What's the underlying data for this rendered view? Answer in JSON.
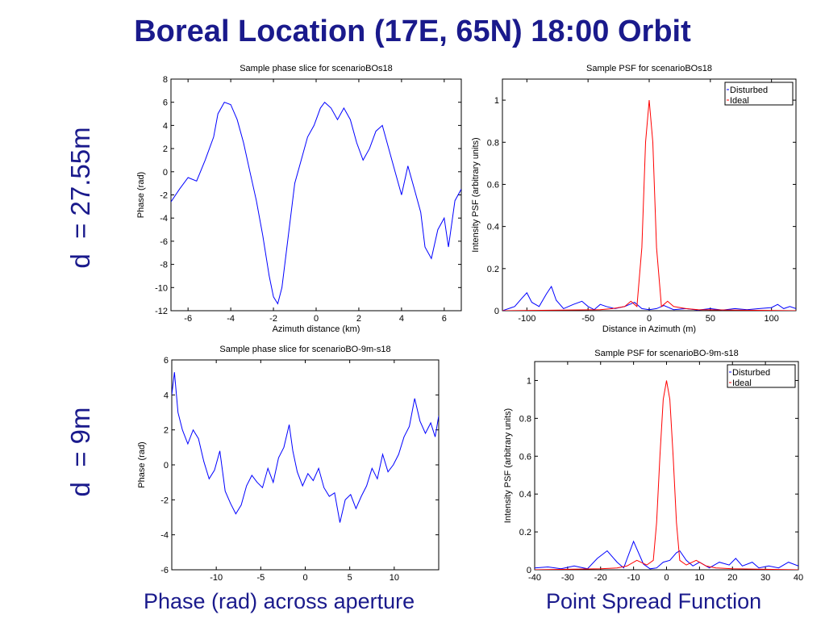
{
  "slide": {
    "title": "Boreal Location (17E, 65N) 18:00 Orbit",
    "row_top_label": "d  = 27.55m",
    "row_bottom_label": "d  = 9m",
    "caption_left": "Phase (rad) across aperture",
    "caption_right": "Point Spread Function",
    "accent_color": "#1a1a8c"
  },
  "chart_data": [
    {
      "id": "phase-top",
      "type": "line",
      "title": "Sample phase slice for scenarioBOs18",
      "xlabel": "Azimuth distance (km)",
      "ylabel": "Phase (rad)",
      "xlim": [
        -6.8,
        6.8
      ],
      "ylim": [
        -12,
        8
      ],
      "xticks": [
        -6,
        -4,
        -2,
        0,
        2,
        4,
        6
      ],
      "yticks": [
        -12,
        -10,
        -8,
        -6,
        -4,
        -2,
        0,
        2,
        4,
        6,
        8
      ],
      "series": [
        {
          "color": "#0000ff",
          "x": [
            -6.8,
            -6.4,
            -6.0,
            -5.6,
            -5.2,
            -4.8,
            -4.6,
            -4.3,
            -4.0,
            -3.7,
            -3.4,
            -3.1,
            -2.8,
            -2.5,
            -2.2,
            -2.0,
            -1.8,
            -1.6,
            -1.4,
            -1.2,
            -1.0,
            -0.7,
            -0.4,
            -0.1,
            0.2,
            0.4,
            0.7,
            1.0,
            1.3,
            1.6,
            1.9,
            2.2,
            2.5,
            2.8,
            3.1,
            3.4,
            3.7,
            4.0,
            4.3,
            4.6,
            4.9,
            5.1,
            5.4,
            5.7,
            6.0,
            6.2,
            6.5,
            6.8
          ],
          "y": [
            -2.6,
            -1.5,
            -0.5,
            -0.8,
            1.0,
            3.0,
            5.0,
            6.0,
            5.8,
            4.5,
            2.5,
            0.0,
            -2.5,
            -5.5,
            -9.0,
            -10.8,
            -11.4,
            -10.0,
            -7.0,
            -4.0,
            -1.0,
            1.0,
            3.0,
            4.0,
            5.5,
            6.0,
            5.5,
            4.5,
            5.5,
            4.5,
            2.5,
            1.0,
            2.0,
            3.5,
            4.0,
            2.0,
            0.0,
            -2.0,
            0.5,
            -1.5,
            -3.5,
            -6.5,
            -7.5,
            -5.0,
            -4.0,
            -6.5,
            -2.5,
            -1.5
          ]
        }
      ]
    },
    {
      "id": "psf-top",
      "type": "line",
      "title": "Sample PSF for scenarioBOs18",
      "xlabel": "Distance in Azimuth (m)",
      "ylabel": "Intensity PSF (arbitrary units)",
      "xlim": [
        -120,
        120
      ],
      "ylim": [
        0,
        1.1
      ],
      "xticks": [
        -100,
        -50,
        0,
        50,
        100
      ],
      "yticks": [
        0,
        0.2,
        0.4,
        0.6,
        0.8,
        1
      ],
      "legend": [
        "Disturbed",
        "Ideal"
      ],
      "legend_placement": "top-right",
      "series": [
        {
          "name": "Disturbed",
          "color": "#0000ff",
          "x": [
            -120,
            -110,
            -104,
            -100,
            -96,
            -90,
            -84,
            -80,
            -76,
            -70,
            -62,
            -55,
            -50,
            -45,
            -40,
            -35,
            -28,
            -20,
            -12,
            -6,
            0,
            6,
            12,
            20,
            30,
            40,
            50,
            60,
            70,
            80,
            90,
            100,
            105,
            110,
            115,
            120
          ],
          "y": [
            0.0,
            0.02,
            0.06,
            0.085,
            0.04,
            0.02,
            0.08,
            0.115,
            0.05,
            0.01,
            0.03,
            0.045,
            0.02,
            0.005,
            0.03,
            0.02,
            0.01,
            0.02,
            0.04,
            0.01,
            0.005,
            0.01,
            0.025,
            0.005,
            0.01,
            0.003,
            0.01,
            0.003,
            0.01,
            0.005,
            0.01,
            0.015,
            0.03,
            0.01,
            0.02,
            0.01
          ]
        },
        {
          "name": "Ideal",
          "color": "#ff0000",
          "x": [
            -120,
            -40,
            -30,
            -20,
            -15,
            -10,
            -6,
            -3,
            0,
            3,
            6,
            10,
            15,
            20,
            30,
            40,
            120
          ],
          "y": [
            0.0,
            0.005,
            0.01,
            0.02,
            0.045,
            0.02,
            0.3,
            0.8,
            1.0,
            0.8,
            0.3,
            0.02,
            0.045,
            0.02,
            0.01,
            0.005,
            0.0
          ]
        }
      ]
    },
    {
      "id": "phase-bottom",
      "type": "line",
      "title": "Sample phase slice for scenarioBO-9m-s18",
      "xlabel": "",
      "ylabel": "Phase (rad)",
      "xlim": [
        -15,
        15
      ],
      "ylim": [
        -6,
        6
      ],
      "xticks": [
        -10,
        -5,
        0,
        5,
        10
      ],
      "yticks": [
        -6,
        -4,
        -2,
        0,
        2,
        4,
        6
      ],
      "series": [
        {
          "color": "#0000ff",
          "x": [
            -15.0,
            -14.7,
            -14.3,
            -13.8,
            -13.2,
            -12.6,
            -12.0,
            -11.4,
            -10.8,
            -10.2,
            -9.6,
            -9.0,
            -8.4,
            -7.8,
            -7.2,
            -6.6,
            -6.0,
            -5.4,
            -4.8,
            -4.2,
            -3.6,
            -3.0,
            -2.4,
            -1.8,
            -1.4,
            -0.9,
            -0.3,
            0.3,
            0.9,
            1.5,
            2.1,
            2.7,
            3.3,
            3.9,
            4.5,
            5.1,
            5.7,
            6.3,
            6.9,
            7.5,
            8.1,
            8.7,
            9.3,
            9.9,
            10.5,
            11.1,
            11.7,
            12.3,
            12.9,
            13.5,
            14.1,
            14.6,
            15.0
          ],
          "y": [
            4.0,
            5.3,
            3.0,
            2.0,
            1.2,
            2.0,
            1.5,
            0.2,
            -0.8,
            -0.3,
            0.8,
            -1.5,
            -2.2,
            -2.8,
            -2.3,
            -1.2,
            -0.6,
            -1.0,
            -1.3,
            -0.2,
            -1.0,
            0.4,
            1.0,
            2.3,
            0.8,
            -0.4,
            -1.2,
            -0.5,
            -0.9,
            -0.2,
            -1.3,
            -1.8,
            -1.6,
            -3.3,
            -2.0,
            -1.7,
            -2.5,
            -1.8,
            -1.2,
            -0.2,
            -0.8,
            0.6,
            -0.4,
            0.0,
            0.6,
            1.6,
            2.2,
            3.8,
            2.5,
            1.8,
            2.4,
            1.6,
            2.8
          ]
        }
      ]
    },
    {
      "id": "psf-bottom",
      "type": "line",
      "title": "Sample PSF for scenarioBO-9m-s18",
      "xlabel": "",
      "ylabel": "Intensity PSF (arbitrary units)",
      "xlim": [
        -40,
        40
      ],
      "ylim": [
        0,
        1.1
      ],
      "xticks": [
        -40,
        -30,
        -20,
        -10,
        0,
        10,
        20,
        30,
        40
      ],
      "yticks": [
        0,
        0.2,
        0.4,
        0.6,
        0.8,
        1
      ],
      "legend": [
        "Disturbed",
        "Ideal"
      ],
      "legend_placement": "top-right",
      "series": [
        {
          "name": "Disturbed",
          "color": "#0000ff",
          "x": [
            -40,
            -36,
            -32,
            -28,
            -24,
            -21,
            -18,
            -15,
            -13,
            -10,
            -7,
            -5,
            -3,
            -1,
            1,
            3,
            4,
            6,
            8,
            10,
            13,
            16,
            19,
            21,
            23,
            26,
            28,
            31,
            34,
            37,
            40
          ],
          "y": [
            0.01,
            0.015,
            0.005,
            0.02,
            0.005,
            0.06,
            0.1,
            0.04,
            0.01,
            0.15,
            0.03,
            0.005,
            0.01,
            0.04,
            0.05,
            0.09,
            0.1,
            0.05,
            0.02,
            0.04,
            0.01,
            0.04,
            0.025,
            0.06,
            0.02,
            0.04,
            0.01,
            0.02,
            0.01,
            0.04,
            0.02
          ]
        },
        {
          "name": "Ideal",
          "color": "#ff0000",
          "x": [
            -40,
            -20,
            -15,
            -12,
            -9,
            -6,
            -4,
            -3,
            -2,
            -1,
            0,
            1,
            2,
            3,
            4,
            6,
            9,
            12,
            15,
            20,
            40
          ],
          "y": [
            0.0,
            0.005,
            0.01,
            0.02,
            0.05,
            0.025,
            0.05,
            0.25,
            0.6,
            0.9,
            1.0,
            0.9,
            0.6,
            0.25,
            0.05,
            0.025,
            0.05,
            0.02,
            0.01,
            0.005,
            0.0
          ]
        }
      ]
    }
  ]
}
